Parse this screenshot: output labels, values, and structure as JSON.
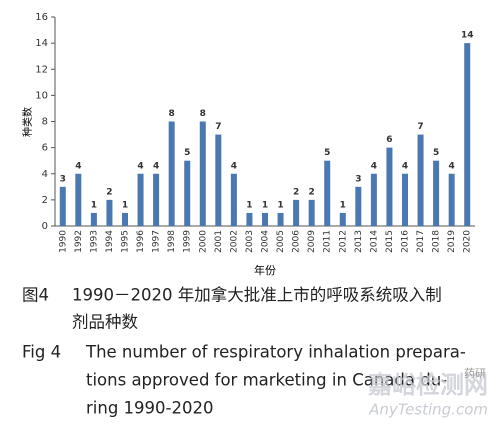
{
  "chart_data": {
    "type": "bar",
    "ylabel": "种类数",
    "xlabel": "年份",
    "categories": [
      "1990",
      "1992",
      "1993",
      "1994",
      "1995",
      "1996",
      "1997",
      "1998",
      "1999",
      "2000",
      "2001",
      "2002",
      "2003",
      "2004",
      "2005",
      "2006",
      "2009",
      "2011",
      "2012",
      "2013",
      "2014",
      "2015",
      "2016",
      "2017",
      "2018",
      "2019",
      "2020"
    ],
    "values": [
      3,
      4,
      1,
      2,
      1,
      4,
      4,
      8,
      5,
      8,
      7,
      4,
      1,
      1,
      1,
      2,
      2,
      5,
      1,
      3,
      4,
      6,
      4,
      7,
      5,
      4,
      14
    ],
    "color": "#4a78b0",
    "ylim": [
      0,
      16
    ],
    "yticks": [
      0,
      2,
      4,
      6,
      8,
      10,
      12,
      14,
      16
    ]
  },
  "caption": {
    "cn_label": "图4",
    "cn_line1": "1990－2020 年加拿大批准上市的呼吸系统吸入制",
    "cn_line2": "剂品种数",
    "en_label": "Fig 4",
    "en_line1": "The number of respiratory inhalation prepara-",
    "en_line2": "tions approved for marketing in Canada du-",
    "en_line3": "ring 1990-2020"
  },
  "watermark": {
    "site": "嘉峪检测网",
    "url": "AnyTesting.com",
    "brand": "药研"
  }
}
